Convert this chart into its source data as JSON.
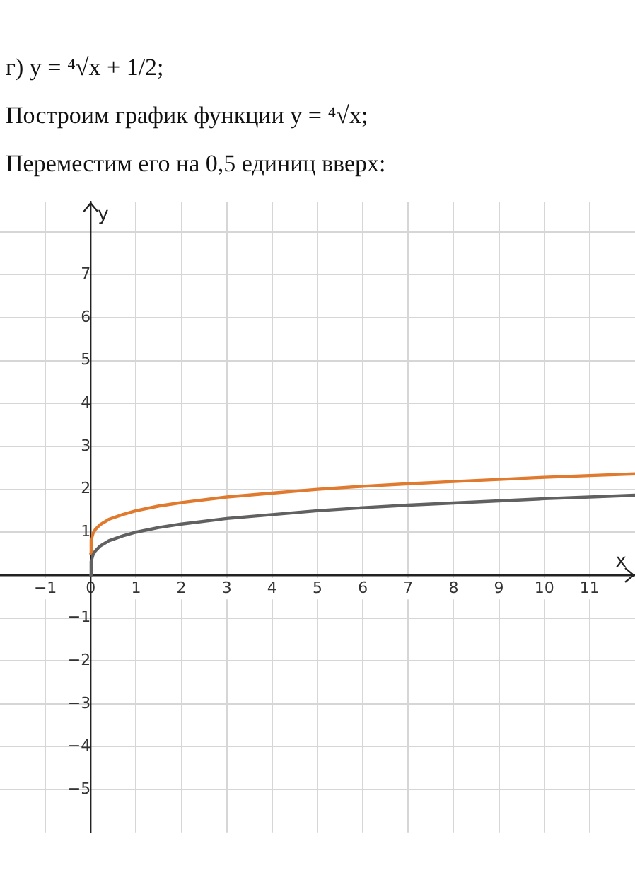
{
  "chart_data": {
    "type": "line",
    "title": "г) y = ⁴√x + 1/2;",
    "annotations": [
      "Построим график функции y = ⁴√x;",
      "Переместим его на 0,5 единиц вверх:"
    ],
    "xlabel": "x",
    "ylabel": "y",
    "xlim": [
      -2,
      12
    ],
    "ylim": [
      -6,
      8.7
    ],
    "xticks": [
      {
        "value": -1,
        "label": "−1"
      },
      0,
      1,
      2,
      3,
      4,
      5,
      6,
      7,
      8,
      9,
      10,
      11
    ],
    "yticks": [
      {
        "value": -5,
        "label": "−5"
      },
      {
        "value": -4,
        "label": "−4"
      },
      {
        "value": -3,
        "label": "−3"
      },
      {
        "value": -2,
        "label": "−2"
      },
      {
        "value": -1,
        "label": "−1"
      },
      {
        "value": 0,
        "label": null
      },
      1,
      2,
      3,
      4,
      5,
      6,
      7,
      {
        "value": 8,
        "label": null
      }
    ],
    "grid": true,
    "legend": false,
    "marker": "none",
    "line_style": "solid",
    "x": [
      0,
      0.01,
      0.05,
      0.1,
      0.2,
      0.4,
      0.7,
      1,
      1.5,
      2,
      3,
      4,
      5,
      6,
      7,
      8,
      9,
      10,
      11,
      12
    ],
    "series": [
      {
        "color": "#616161",
        "values": [
          0,
          0.32,
          0.47,
          0.56,
          0.67,
          0.8,
          0.91,
          1,
          1.11,
          1.19,
          1.32,
          1.41,
          1.5,
          1.57,
          1.63,
          1.68,
          1.73,
          1.78,
          1.82,
          1.86
        ]
      },
      {
        "color": "#e07a2e",
        "values": [
          0.5,
          0.82,
          0.97,
          1.06,
          1.17,
          1.3,
          1.41,
          1.5,
          1.61,
          1.69,
          1.82,
          1.91,
          2,
          2.07,
          2.13,
          2.18,
          2.23,
          2.28,
          2.32,
          2.36
        ]
      }
    ]
  }
}
